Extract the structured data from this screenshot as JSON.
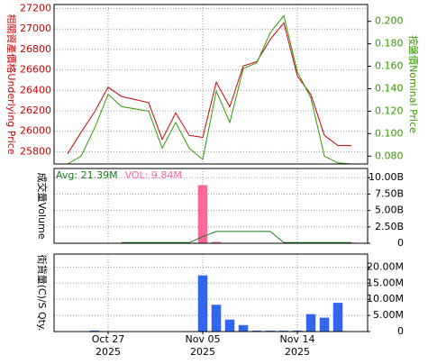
{
  "chart_data": [
    {
      "type": "line",
      "categories": [
        null,
        null,
        null,
        "Oct 27",
        null,
        null,
        null,
        null,
        null,
        null,
        "Nov 05",
        null,
        null,
        null,
        null,
        null,
        null,
        "Nov 14",
        null,
        null,
        null,
        null
      ],
      "category_years": [
        null,
        null,
        null,
        "2025",
        null,
        null,
        null,
        null,
        null,
        null,
        "2025",
        null,
        null,
        null,
        null,
        null,
        null,
        "2025",
        null,
        null,
        null,
        null
      ],
      "ylabel": "相關資產價格Underlying Price",
      "y2label": "按盤價Nominal Price",
      "ylim": [
        25680,
        27240
      ],
      "yticks": [
        25800,
        26000,
        26200,
        26400,
        26600,
        26800,
        27000,
        27200
      ],
      "y2lim": [
        0.073,
        0.215
      ],
      "y2ticks": [
        {
          "value": 0.08,
          "label": "0.080"
        },
        {
          "value": 0.1,
          "label": "0.100"
        },
        {
          "value": 0.12,
          "label": "0.120"
        },
        {
          "value": 0.14,
          "label": "0.140"
        },
        {
          "value": 0.16,
          "label": "0.160"
        },
        {
          "value": 0.18,
          "label": "0.180"
        },
        {
          "value": 0.2,
          "label": "0.200"
        }
      ],
      "grid": true,
      "series": [
        {
          "color": "#cc0000",
          "values": [
            25780,
            25990,
            26190,
            26430,
            26340,
            26310,
            26280,
            25920,
            26180,
            25960,
            25940,
            26480,
            26240,
            26640,
            26680,
            26900,
            27060,
            26540,
            26360,
            25960,
            25860,
            25860
          ]
        },
        {
          "color": "#339900",
          "axis": "y2",
          "values": [
            0.073,
            0.08,
            0.105,
            0.135,
            0.124,
            0.122,
            0.12,
            0.087,
            0.11,
            0.087,
            0.077,
            0.138,
            0.11,
            0.158,
            0.163,
            0.19,
            0.205,
            0.155,
            0.132,
            0.08,
            0.074,
            0.073
          ]
        }
      ]
    },
    {
      "type": "bar-line",
      "ylabel": "成交量Volume",
      "ylim": [
        0,
        11400000000
      ],
      "yticks": [
        0,
        {
          "value": 2500000000,
          "label": "2.50B"
        },
        {
          "value": 5000000000,
          "label": "5.00B"
        },
        {
          "value": 7500000000,
          "label": "7.50B"
        },
        {
          "value": 10000000000,
          "label": "10.00B"
        }
      ],
      "grid": true,
      "series": [
        {
          "name": "VOL: 9.84M",
          "color": "#ff6699",
          "kind": "bar",
          "values": [
            null,
            null,
            null,
            null,
            null,
            null,
            null,
            null,
            null,
            null,
            8860000000,
            200000000,
            null,
            null,
            null,
            null,
            null,
            null,
            null,
            null,
            null,
            100000000
          ]
        },
        {
          "name": "Avg: 21.39M",
          "color": "#1a7a1a",
          "kind": "line",
          "values": [
            null,
            null,
            null,
            null,
            100000000,
            100000000,
            100000000,
            100000000,
            100000000,
            100000000,
            1000000000,
            1800000000,
            1800000000,
            1800000000,
            1800000000,
            1800000000,
            100000000,
            100000000,
            100000000,
            100000000,
            100000000,
            100000000
          ]
        }
      ]
    },
    {
      "type": "bar",
      "ylabel": "街貨量(C)/S Qty.",
      "ylim": [
        0,
        24000000
      ],
      "yticks": [
        0,
        {
          "value": 5000000,
          "label": "5.00M"
        },
        {
          "value": 10000000,
          "label": "10.00M"
        },
        {
          "value": 15000000,
          "label": "15.00M"
        },
        {
          "value": 20000000,
          "label": "20.00M"
        }
      ],
      "grid": true,
      "series": [
        {
          "color": "#3366ee",
          "values": [
            null,
            null,
            300000,
            null,
            null,
            null,
            null,
            null,
            null,
            null,
            17400000,
            8300000,
            3700000,
            2000000,
            300000,
            300000,
            300000,
            300000,
            5400000,
            4300000,
            8900000,
            null
          ]
        }
      ]
    }
  ]
}
